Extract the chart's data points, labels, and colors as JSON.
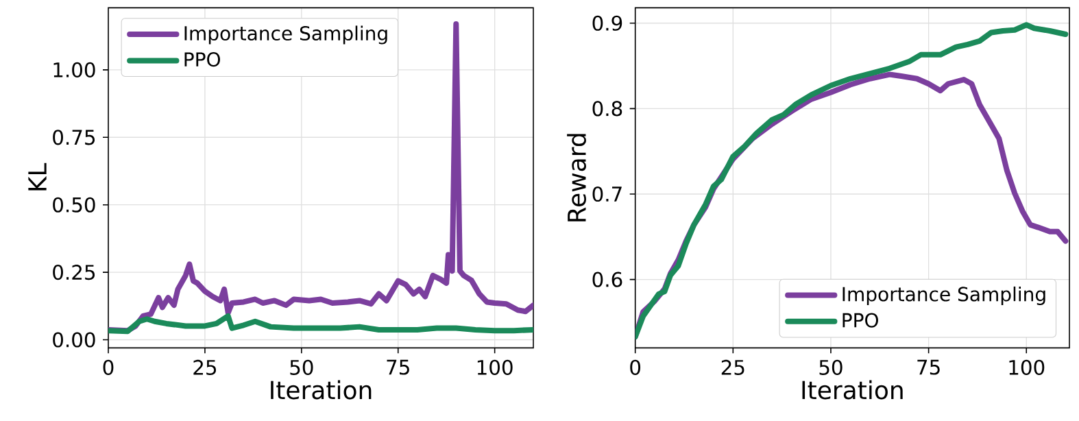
{
  "chart_data": [
    {
      "type": "line",
      "xlabel": "Iteration",
      "ylabel": "KL",
      "xlim": [
        0,
        110
      ],
      "ylim": [
        -0.03,
        1.23
      ],
      "xticks": [
        0,
        25,
        50,
        75,
        100
      ],
      "yticks": [
        {
          "value": 0,
          "label": "0.00"
        },
        {
          "value": 0.25,
          "label": "0.25"
        },
        {
          "value": 0.5,
          "label": "0.50"
        },
        {
          "value": 0.75,
          "label": "0.75"
        },
        {
          "value": 1.0,
          "label": "1.00"
        }
      ],
      "grid": true,
      "legend": "top left",
      "line_style": "solid",
      "series": [
        {
          "name": "Importance Sampling",
          "color": "#7b3f9e",
          "x": [
            0,
            5,
            7,
            9,
            11,
            13,
            14,
            15.5,
            17,
            18,
            20,
            21,
            22,
            23,
            25,
            27,
            29,
            30,
            31,
            32,
            35,
            38,
            40,
            43,
            46,
            48,
            52,
            55,
            58,
            62,
            65,
            68,
            70,
            72,
            75,
            77,
            79,
            80.5,
            82,
            84,
            86,
            87.5,
            88,
            89,
            90,
            91,
            92,
            94,
            96,
            98,
            100,
            103,
            106,
            108,
            110
          ],
          "values": [
            0.037,
            0.034,
            0.05,
            0.088,
            0.095,
            0.156,
            0.12,
            0.156,
            0.128,
            0.187,
            0.238,
            0.28,
            0.218,
            0.21,
            0.18,
            0.16,
            0.145,
            0.187,
            0.1,
            0.136,
            0.14,
            0.15,
            0.136,
            0.145,
            0.128,
            0.15,
            0.145,
            0.15,
            0.136,
            0.14,
            0.145,
            0.133,
            0.17,
            0.145,
            0.218,
            0.204,
            0.17,
            0.187,
            0.16,
            0.238,
            0.224,
            0.21,
            0.315,
            0.255,
            1.17,
            0.255,
            0.238,
            0.22,
            0.17,
            0.14,
            0.136,
            0.133,
            0.11,
            0.105,
            0.128
          ]
        },
        {
          "name": "PPO",
          "color": "#1b8a5a",
          "x": [
            0,
            5,
            8,
            10,
            12,
            15,
            20,
            25,
            28,
            31,
            32,
            35,
            38,
            42,
            48,
            55,
            60,
            65,
            70,
            75,
            80,
            85,
            90,
            95,
            100,
            105,
            110
          ],
          "values": [
            0.034,
            0.031,
            0.068,
            0.077,
            0.068,
            0.06,
            0.051,
            0.051,
            0.06,
            0.088,
            0.043,
            0.054,
            0.068,
            0.048,
            0.043,
            0.043,
            0.043,
            0.048,
            0.037,
            0.037,
            0.037,
            0.043,
            0.043,
            0.037,
            0.034,
            0.034,
            0.037
          ]
        }
      ]
    },
    {
      "type": "line",
      "xlabel": "Iteration",
      "ylabel": "Reward",
      "xlim": [
        0,
        111
      ],
      "ylim": [
        0.52,
        0.918
      ],
      "xticks": [
        0,
        25,
        50,
        75,
        100
      ],
      "yticks": [
        0.6,
        0.7,
        0.8,
        0.9
      ],
      "grid": true,
      "legend": "bottom right",
      "line_style": "solid",
      "series": [
        {
          "name": "Importance Sampling",
          "color": "#7b3f9e",
          "x": [
            0,
            2,
            5,
            7.5,
            9,
            11,
            13,
            15,
            18,
            20,
            25,
            30,
            35,
            40,
            45,
            50,
            55,
            60,
            65,
            68,
            72,
            75,
            78,
            80,
            84,
            86,
            88,
            91,
            93,
            95,
            97,
            99,
            101,
            103,
            106,
            108,
            110
          ],
          "values": [
            0.533,
            0.562,
            0.575,
            0.589,
            0.607,
            0.623,
            0.645,
            0.664,
            0.685,
            0.706,
            0.741,
            0.765,
            0.782,
            0.797,
            0.811,
            0.819,
            0.828,
            0.835,
            0.84,
            0.838,
            0.835,
            0.829,
            0.821,
            0.829,
            0.834,
            0.829,
            0.805,
            0.781,
            0.765,
            0.728,
            0.701,
            0.68,
            0.664,
            0.661,
            0.656,
            0.656,
            0.645
          ]
        },
        {
          "name": "PPO",
          "color": "#1b8a5a",
          "x": [
            0,
            2,
            4,
            6,
            7.5,
            9,
            11,
            13,
            15,
            18,
            20,
            22,
            25,
            28,
            31,
            35,
            38,
            41,
            45,
            50,
            55,
            60,
            65,
            70,
            73,
            75,
            78,
            82,
            85,
            88,
            91,
            94,
            97,
            100,
            102,
            106,
            110
          ],
          "values": [
            0.533,
            0.557,
            0.57,
            0.583,
            0.586,
            0.605,
            0.616,
            0.642,
            0.664,
            0.688,
            0.709,
            0.717,
            0.744,
            0.756,
            0.771,
            0.787,
            0.793,
            0.805,
            0.816,
            0.827,
            0.835,
            0.841,
            0.847,
            0.855,
            0.863,
            0.863,
            0.863,
            0.872,
            0.875,
            0.879,
            0.889,
            0.891,
            0.892,
            0.898,
            0.894,
            0.891,
            0.887
          ]
        }
      ]
    }
  ]
}
